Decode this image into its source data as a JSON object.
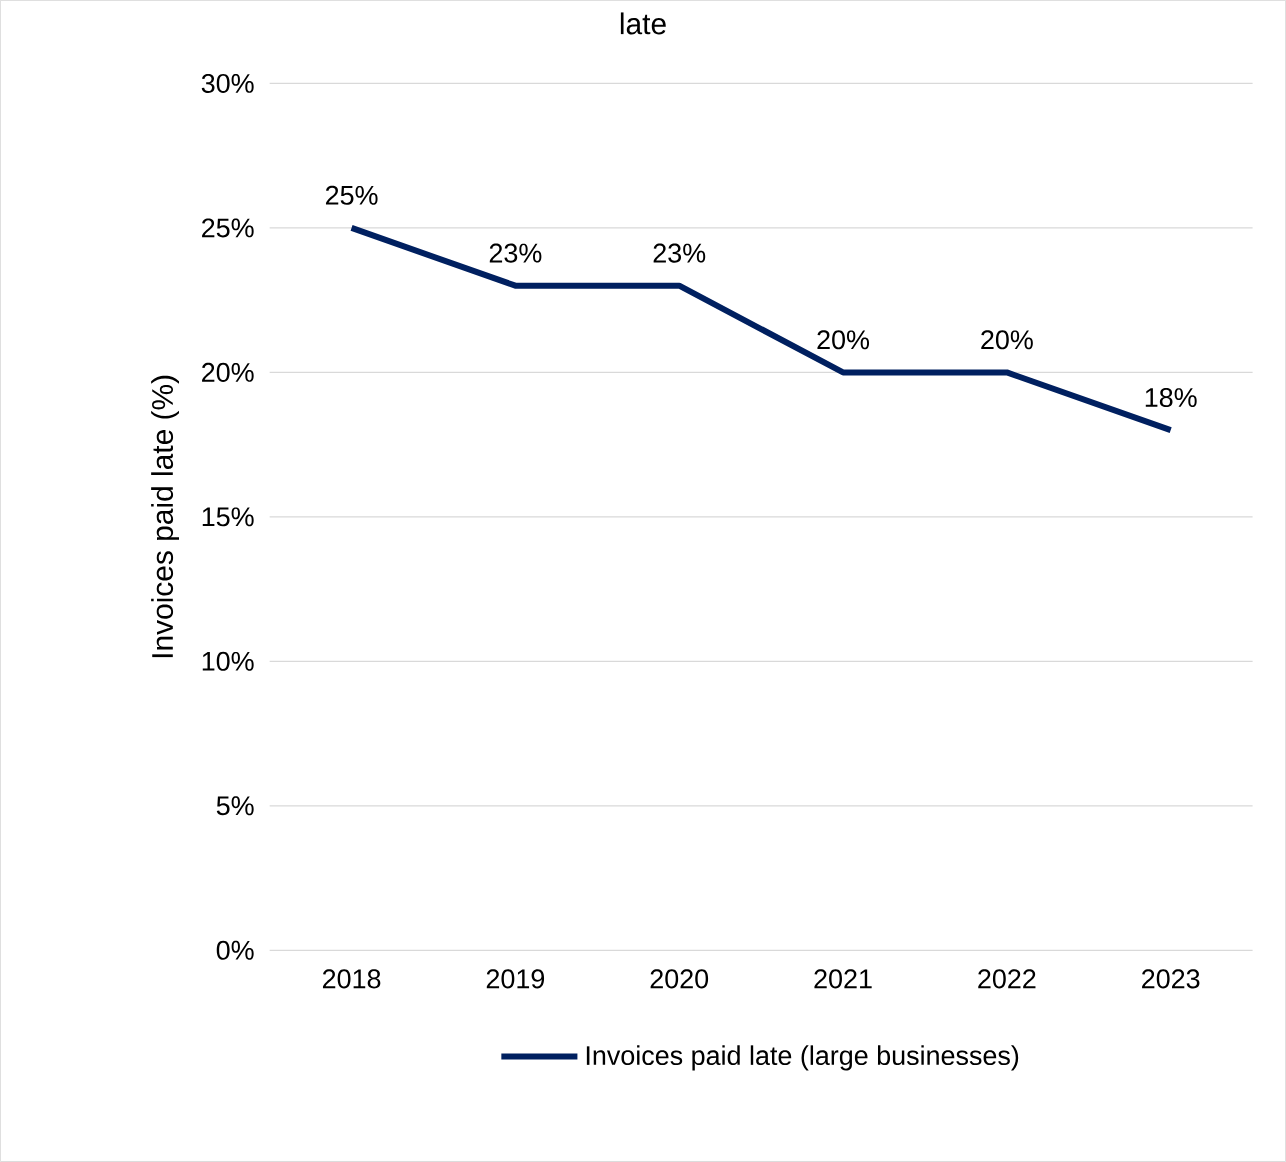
{
  "chart_data": {
    "type": "line",
    "title": "late",
    "ylabel": "Invoices paid late (%)",
    "categories": [
      "2018",
      "2019",
      "2020",
      "2021",
      "2022",
      "2023"
    ],
    "series": [
      {
        "name": "Invoices paid late (large businesses)",
        "color": "#002060",
        "values": [
          25,
          23,
          23,
          20,
          20,
          18
        ],
        "value_labels": [
          "25%",
          "23%",
          "23%",
          "20%",
          "20%",
          "18%"
        ]
      }
    ],
    "ylim": [
      0,
      30
    ],
    "yticks": [
      {
        "value": 0,
        "label": "0%"
      },
      {
        "value": 5,
        "label": "5%"
      },
      {
        "value": 10,
        "label": "10%"
      },
      {
        "value": 15,
        "label": "15%"
      },
      {
        "value": 20,
        "label": "20%"
      },
      {
        "value": 25,
        "label": "25%"
      },
      {
        "value": 30,
        "label": "30%"
      }
    ],
    "grid": "y",
    "legend": "bottom",
    "marker": "none",
    "line_style": "solid"
  }
}
